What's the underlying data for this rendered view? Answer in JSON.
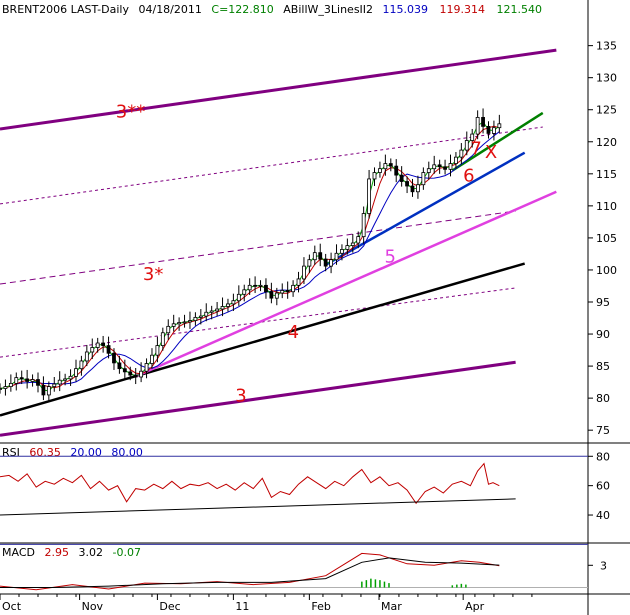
{
  "colors": {
    "purple": "#800080",
    "black": "#000000",
    "blue": "#0030c0",
    "magenta": "#e040e0",
    "green": "#008000",
    "red": "#d01010",
    "indicator_red": "#c00000",
    "ma_blue": "#0000c0",
    "ma_green": "#00a000"
  },
  "header": {
    "symbol": "BRENT2006 LAST-Daily",
    "date": "04/18/2011",
    "close": "C=122.810",
    "study": "ABillW_3LinesII2",
    "v1": "115.039",
    "v2": "119.314",
    "v3": "121.540"
  },
  "rsi_header": {
    "name": "RSI",
    "value": "60.35",
    "low": "20.00",
    "high": "80.00"
  },
  "macd_header": {
    "name": "MACD",
    "v1": "2.95",
    "v2": "3.02",
    "v3": "-0.07"
  },
  "chart_data": {
    "type": "line",
    "price_axis": {
      "range": [
        73,
        139
      ],
      "ticks": [
        75,
        80,
        85,
        90,
        95,
        100,
        105,
        110,
        115,
        120,
        125,
        130,
        135
      ]
    },
    "rsi_axis": {
      "range": [
        23,
        87
      ],
      "ticks": [
        40,
        60,
        80
      ],
      "levels": [
        20,
        80
      ]
    },
    "macd_axis": {
      "ticks": [
        3
      ]
    },
    "x_axis": {
      "domain": [
        0,
        650
      ],
      "labels": [
        {
          "text": "Oct",
          "x": 0
        },
        {
          "text": "Nov",
          "x": 88
        },
        {
          "text": "Dec",
          "x": 174
        },
        {
          "text": "11",
          "x": 258
        },
        {
          "text": "Feb",
          "x": 342
        },
        {
          "text": "Mar",
          "x": 419
        },
        {
          "text": "Apr",
          "x": 512
        }
      ]
    },
    "trendlines": [
      {
        "name": "3",
        "color": "#800080",
        "width": 3,
        "dash": "",
        "points": [
          [
            0,
            74.2
          ],
          [
            570,
            85.6
          ]
        ]
      },
      {
        "name": "3*",
        "color": "#800080",
        "width": 1,
        "dash": "6,4",
        "points": [
          [
            0,
            97.8
          ],
          [
            570,
            109.2
          ]
        ]
      },
      {
        "name": "3**",
        "color": "#800080",
        "width": 3,
        "dash": "",
        "points": [
          [
            0,
            122
          ],
          [
            615,
            134.3
          ]
        ]
      },
      {
        "name": "upper-channel",
        "color": "#800080",
        "width": 1,
        "dash": "3,3",
        "points": [
          [
            0,
            110.3
          ],
          [
            600,
            122.3
          ]
        ]
      },
      {
        "name": "lower-channel",
        "color": "#800080",
        "width": 1,
        "dash": "3,3",
        "points": [
          [
            0,
            86.4
          ],
          [
            570,
            97.2
          ]
        ]
      },
      {
        "name": "4",
        "color": "#000000",
        "width": 2.5,
        "dash": "",
        "points": [
          [
            0,
            77.3
          ],
          [
            580,
            101
          ]
        ]
      },
      {
        "name": "5",
        "color": "#e040e0",
        "width": 2.5,
        "dash": "",
        "points": [
          [
            150,
            83.4
          ],
          [
            615,
            112.2
          ]
        ]
      },
      {
        "name": "6",
        "color": "#0030c0",
        "width": 2.5,
        "dash": "",
        "points": [
          [
            360,
            100.8
          ],
          [
            580,
            118.3
          ]
        ]
      },
      {
        "name": "7",
        "color": "#008000",
        "width": 2.5,
        "dash": "",
        "points": [
          [
            500,
            115.5
          ],
          [
            600,
            124.5
          ]
        ]
      }
    ],
    "price": [
      [
        0,
        81.5
      ],
      [
        6,
        81.8
      ],
      [
        12,
        82.3
      ],
      [
        18,
        83.2
      ],
      [
        24,
        83
      ],
      [
        30,
        82.6
      ],
      [
        36,
        82.9
      ],
      [
        42,
        82
      ],
      [
        48,
        80.5
      ],
      [
        54,
        81.8
      ],
      [
        60,
        82.2
      ],
      [
        66,
        82.8
      ],
      [
        72,
        83
      ],
      [
        78,
        83.4
      ],
      [
        84,
        84.6
      ],
      [
        90,
        85.8
      ],
      [
        96,
        87.2
      ],
      [
        102,
        87.9
      ],
      [
        108,
        88.6
      ],
      [
        114,
        88.2
      ],
      [
        120,
        87
      ],
      [
        126,
        85.5
      ],
      [
        132,
        84.6
      ],
      [
        138,
        84.1
      ],
      [
        144,
        83.6
      ],
      [
        150,
        83.3
      ],
      [
        156,
        84.2
      ],
      [
        162,
        85.4
      ],
      [
        168,
        86.7
      ],
      [
        174,
        88.2
      ],
      [
        180,
        90.2
      ],
      [
        186,
        91.2
      ],
      [
        192,
        91.6
      ],
      [
        198,
        91.8
      ],
      [
        204,
        91.9
      ],
      [
        210,
        92.1
      ],
      [
        216,
        92.6
      ],
      [
        222,
        92.8
      ],
      [
        228,
        93.4
      ],
      [
        234,
        93.6
      ],
      [
        240,
        93.9
      ],
      [
        246,
        94.3
      ],
      [
        252,
        94.7
      ],
      [
        258,
        95.2
      ],
      [
        264,
        96.2
      ],
      [
        270,
        96.9
      ],
      [
        276,
        97.6
      ],
      [
        282,
        97.5
      ],
      [
        288,
        97.6
      ],
      [
        294,
        96.6
      ],
      [
        300,
        95.6
      ],
      [
        306,
        96.4
      ],
      [
        312,
        96.8
      ],
      [
        318,
        96.6
      ],
      [
        324,
        97.6
      ],
      [
        330,
        98.6
      ],
      [
        336,
        100.6
      ],
      [
        342,
        101.6
      ],
      [
        348,
        102.7
      ],
      [
        354,
        101.7
      ],
      [
        360,
        100.6
      ],
      [
        366,
        101.6
      ],
      [
        372,
        102.6
      ],
      [
        378,
        103.2
      ],
      [
        384,
        103.8
      ],
      [
        390,
        104.2
      ],
      [
        396,
        105.2
      ],
      [
        402,
        108.8
      ],
      [
        408,
        114.2
      ],
      [
        414,
        115.2
      ],
      [
        420,
        115.8
      ],
      [
        426,
        116.6
      ],
      [
        432,
        116.2
      ],
      [
        438,
        114.8
      ],
      [
        444,
        113.8
      ],
      [
        450,
        113.1
      ],
      [
        456,
        112.2
      ],
      [
        462,
        113.3
      ],
      [
        468,
        115.2
      ],
      [
        474,
        115.8
      ],
      [
        480,
        116.4
      ],
      [
        486,
        116.1
      ],
      [
        492,
        115.7
      ],
      [
        498,
        116.6
      ],
      [
        504,
        117.6
      ],
      [
        510,
        118.7
      ],
      [
        516,
        120.2
      ],
      [
        522,
        121.2
      ],
      [
        528,
        123.8
      ],
      [
        534,
        122.4
      ],
      [
        540,
        121.3
      ],
      [
        546,
        122.2
      ],
      [
        552,
        122.8
      ]
    ],
    "rsi": [
      [
        0,
        66
      ],
      [
        10,
        67
      ],
      [
        20,
        63
      ],
      [
        30,
        68
      ],
      [
        40,
        59
      ],
      [
        50,
        63
      ],
      [
        60,
        61
      ],
      [
        70,
        65
      ],
      [
        80,
        62
      ],
      [
        90,
        67
      ],
      [
        100,
        58
      ],
      [
        110,
        63
      ],
      [
        120,
        57
      ],
      [
        130,
        60
      ],
      [
        140,
        49
      ],
      [
        150,
        58
      ],
      [
        160,
        57
      ],
      [
        170,
        61
      ],
      [
        180,
        58
      ],
      [
        190,
        63
      ],
      [
        200,
        58
      ],
      [
        210,
        61
      ],
      [
        220,
        60
      ],
      [
        230,
        62
      ],
      [
        240,
        58
      ],
      [
        250,
        61
      ],
      [
        260,
        57
      ],
      [
        270,
        62
      ],
      [
        280,
        58
      ],
      [
        290,
        65
      ],
      [
        300,
        52
      ],
      [
        310,
        56
      ],
      [
        320,
        54
      ],
      [
        330,
        61
      ],
      [
        340,
        66
      ],
      [
        350,
        62
      ],
      [
        360,
        58
      ],
      [
        370,
        63
      ],
      [
        380,
        60
      ],
      [
        390,
        66
      ],
      [
        400,
        71
      ],
      [
        410,
        62
      ],
      [
        420,
        66
      ],
      [
        430,
        60
      ],
      [
        440,
        62
      ],
      [
        450,
        57
      ],
      [
        460,
        48
      ],
      [
        470,
        56
      ],
      [
        480,
        59
      ],
      [
        490,
        55
      ],
      [
        500,
        61
      ],
      [
        510,
        63
      ],
      [
        520,
        60
      ],
      [
        528,
        70
      ],
      [
        535,
        75
      ],
      [
        540,
        61
      ],
      [
        545,
        62
      ],
      [
        552,
        60
      ]
    ],
    "rsi_trendline": [
      [
        0,
        40
      ],
      [
        570,
        51
      ]
    ],
    "macd": [
      [
        0,
        0.2
      ],
      [
        40,
        -0.3
      ],
      [
        80,
        0.4
      ],
      [
        120,
        -0.2
      ],
      [
        160,
        0.6
      ],
      [
        200,
        0.5
      ],
      [
        240,
        0.8
      ],
      [
        280,
        0.4
      ],
      [
        320,
        0.7
      ],
      [
        360,
        1.6
      ],
      [
        400,
        4.6
      ],
      [
        420,
        4.4
      ],
      [
        450,
        3.2
      ],
      [
        480,
        3
      ],
      [
        510,
        3.6
      ],
      [
        530,
        3.4
      ],
      [
        552,
        2.95
      ]
    ],
    "macd_signal": [
      [
        0,
        0
      ],
      [
        60,
        0
      ],
      [
        120,
        0.2
      ],
      [
        180,
        0.5
      ],
      [
        240,
        0.7
      ],
      [
        300,
        0.7
      ],
      [
        360,
        1.2
      ],
      [
        400,
        3.4
      ],
      [
        430,
        4
      ],
      [
        470,
        3.4
      ],
      [
        510,
        3.3
      ],
      [
        552,
        3.02
      ]
    ],
    "macd_hist": [
      [
        400,
        0.8
      ],
      [
        405,
        1
      ],
      [
        410,
        1.2
      ],
      [
        415,
        1.1
      ],
      [
        420,
        1
      ],
      [
        425,
        0.8
      ],
      [
        430,
        0.6
      ],
      [
        500,
        0.3
      ],
      [
        505,
        0.4
      ],
      [
        510,
        0.5
      ],
      [
        515,
        0.4
      ]
    ],
    "annotations": [
      {
        "text": "3",
        "x": 260,
        "y": 79.5,
        "color": "#e01010"
      },
      {
        "text": "3*",
        "x": 158,
        "y": 98.4,
        "color": "#e01010"
      },
      {
        "text": "3**",
        "x": 128,
        "y": 123.8,
        "color": "#e01010"
      },
      {
        "text": "4",
        "x": 318,
        "y": 89.4,
        "color": "#e01010"
      },
      {
        "text": "5",
        "x": 425,
        "y": 101.2,
        "color": "#e040e0"
      },
      {
        "text": "6",
        "x": 512,
        "y": 113.8,
        "color": "#e01010"
      },
      {
        "text": "7",
        "x": 520,
        "y": 118,
        "color": "#e01010"
      },
      {
        "text": "X",
        "x": 536,
        "y": 117.5,
        "color": "#e01010"
      }
    ]
  }
}
